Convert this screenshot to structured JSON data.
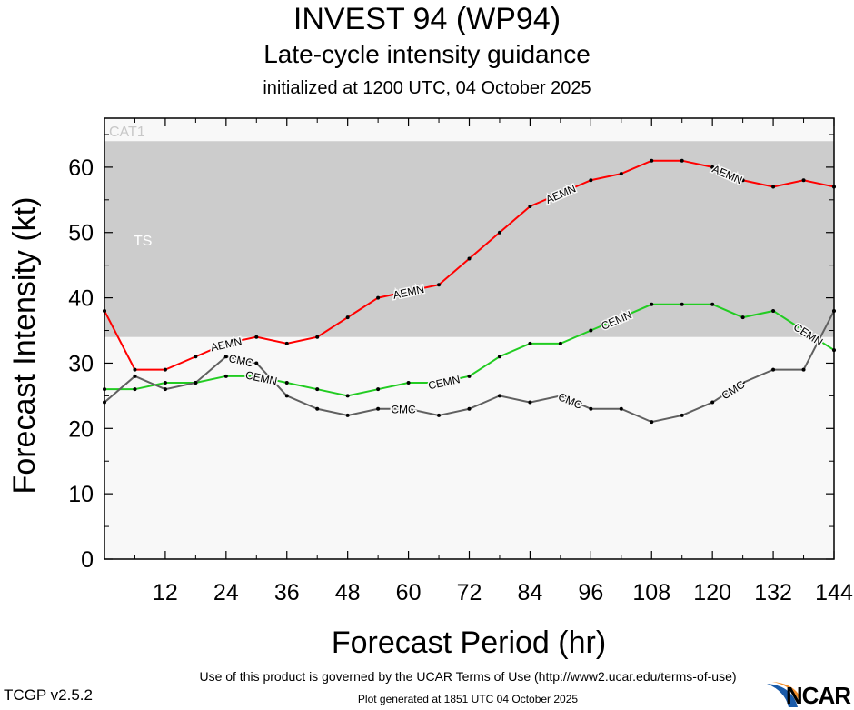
{
  "header": {
    "title": "INVEST 94 (WP94)",
    "subtitle": "Late-cycle intensity guidance",
    "initialized": "initialized at 1200 UTC, 04 October 2025"
  },
  "footer": {
    "terms": "Use of this product is governed by the UCAR Terms of Use (http://www2.ucar.edu/terms-of-use)",
    "generated": "Plot generated at 1851 UTC   04 October 2025",
    "version": "TCGP v2.5.2",
    "logo": "NCAR"
  },
  "chart_data": {
    "type": "line",
    "xlabel": "Forecast Period (hr)",
    "ylabel": "Forecast Intensity (kt)",
    "xlim": [
      0,
      144
    ],
    "ylim": [
      0,
      67.5
    ],
    "xticks": [
      12,
      24,
      36,
      48,
      60,
      72,
      84,
      96,
      108,
      120,
      132,
      144
    ],
    "yticks": [
      0,
      10,
      20,
      30,
      40,
      50,
      60
    ],
    "grid": false,
    "bands": [
      {
        "label": "TS",
        "from": 34,
        "to": 64,
        "color": "#cccccc"
      },
      {
        "label": "CAT1",
        "from": 64,
        "to": 67.5,
        "color": "#f8f8f8"
      }
    ],
    "background_color": "#f8f8f8",
    "x": [
      0,
      6,
      12,
      18,
      24,
      30,
      36,
      42,
      48,
      54,
      60,
      66,
      72,
      78,
      84,
      90,
      96,
      102,
      108,
      114,
      120,
      126,
      132,
      138,
      144
    ],
    "series": [
      {
        "name": "AEMN",
        "color": "#ff0000",
        "values": [
          38,
          29,
          29,
          31,
          33,
          34,
          33,
          34,
          37,
          40,
          41,
          42,
          46,
          50,
          54,
          56,
          58,
          59,
          61,
          61,
          60,
          58,
          57,
          58,
          57
        ]
      },
      {
        "name": "CEMN",
        "color": "#22cc22",
        "values": [
          26,
          26,
          27,
          27,
          28,
          28,
          27,
          26,
          25,
          26,
          27,
          27,
          28,
          31,
          33,
          33,
          35,
          37,
          39,
          39,
          39,
          37,
          38,
          35,
          32
        ]
      },
      {
        "name": "CMC",
        "color": "#606060",
        "values": [
          24,
          28,
          26,
          27,
          31,
          30,
          25,
          23,
          22,
          23,
          23,
          22,
          23,
          25,
          24,
          25,
          23,
          23,
          21,
          22,
          24,
          27,
          29,
          29,
          38
        ]
      }
    ]
  }
}
